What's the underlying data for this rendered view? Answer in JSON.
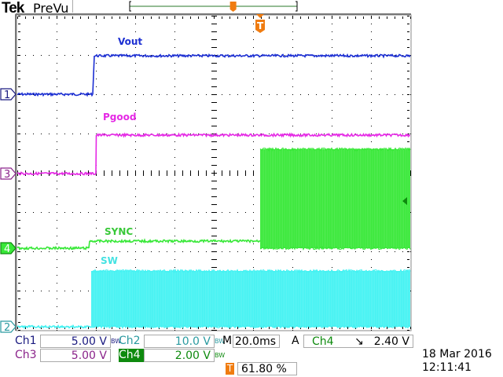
{
  "header": {
    "brand": "Tek",
    "mode": "PreVu"
  },
  "channels": [
    {
      "id": "Ch1",
      "name": "Vout",
      "marker": "1",
      "scale": "5.00 V",
      "bw_limit": "BW",
      "color": "#1c2fd2",
      "label_color": "#1a1a80"
    },
    {
      "id": "Ch2",
      "name": "SW",
      "marker": "2",
      "scale": "10.0 V",
      "bw_limit": "BW",
      "color": "#44f2f2",
      "label_color": "#2a9aa0"
    },
    {
      "id": "Ch3",
      "name": "Pgood",
      "marker": "3",
      "scale": "5.00 V",
      "bw_limit": "",
      "color": "#e528e5",
      "label_color": "#8a228a"
    },
    {
      "id": "Ch4",
      "name": "SYNC",
      "marker": "4",
      "scale": "2.00 V",
      "bw_limit": "BW",
      "color": "#38e838",
      "label_color": "#0e8a0e"
    }
  ],
  "timebase": {
    "prefix": "M",
    "scale": "20.0ms"
  },
  "trigger": {
    "mode": "A",
    "source": "Ch4",
    "slope": "falling",
    "slope_glyph": "↘",
    "level": "2.40 V",
    "marker": "T",
    "position": "61.80 %",
    "position_pct": 61.8,
    "color": "#f07c10"
  },
  "timestamp": {
    "date": "18 Mar  2016",
    "time": "12:11:41"
  },
  "chart_data": {
    "type": "line",
    "title": "",
    "x_unit": "ms",
    "xlim": [
      0,
      200
    ],
    "x_divisions": 10,
    "y_divisions": 8,
    "grid": true,
    "series": [
      {
        "name": "Vout",
        "channel": "Ch1",
        "volts_per_div": 5,
        "points": [
          [
            0,
            0
          ],
          [
            38.4,
            0
          ],
          [
            39.2,
            4.9
          ],
          [
            200,
            4.9
          ]
        ],
        "noise_v": 0.15
      },
      {
        "name": "Pgood",
        "channel": "Ch3",
        "volts_per_div": 5,
        "points": [
          [
            0,
            0
          ],
          [
            40,
            0
          ],
          [
            40.2,
            4.9
          ],
          [
            200,
            4.9
          ]
        ],
        "noise_v": 0.15
      },
      {
        "name": "SYNC",
        "channel": "Ch4",
        "volts_per_div": 2,
        "points": [
          [
            0,
            0
          ],
          [
            36.4,
            0
          ],
          [
            36.8,
            0.36
          ],
          [
            123.6,
            0.36
          ]
        ],
        "switching": {
          "start": 123.6,
          "end": 200,
          "low": 0,
          "high": 5.04
        },
        "noise_v": 0.06
      },
      {
        "name": "SW",
        "channel": "Ch2",
        "volts_per_div": 10,
        "points": [
          [
            0,
            0
          ],
          [
            37.6,
            0
          ]
        ],
        "switching": {
          "start": 37.6,
          "end": 200,
          "low": 0,
          "high": 14.2
        },
        "noise_v": 0.3
      }
    ]
  }
}
